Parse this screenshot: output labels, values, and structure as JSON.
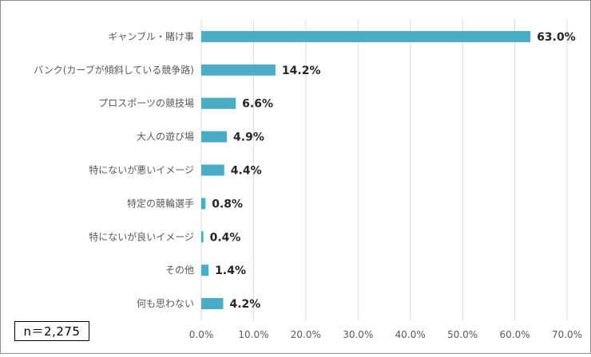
{
  "chart_data": {
    "type": "bar",
    "orientation": "horizontal",
    "categories": [
      "ギャンブル・賭け事",
      "バンク(カーブが傾斜している競争路)",
      "プロスポーツの競技場",
      "大人の遊び場",
      "特にないが悪いイメージ",
      "特定の競輪選手",
      "特にないが良いイメージ",
      "その他",
      "何も思わない"
    ],
    "values": [
      63.0,
      14.2,
      6.6,
      4.9,
      4.4,
      0.8,
      0.4,
      1.4,
      4.2
    ],
    "value_labels": [
      "63.0%",
      "14.2%",
      "6.6%",
      "4.9%",
      "4.4%",
      "0.8%",
      "0.4%",
      "1.4%",
      "4.2%"
    ],
    "xlim": [
      0,
      70
    ],
    "x_ticks": [
      0,
      10,
      20,
      30,
      40,
      50,
      60,
      70
    ],
    "x_tick_labels": [
      "0.0%",
      "10.0%",
      "20.0%",
      "30.0%",
      "40.0%",
      "50.0%",
      "60.0%",
      "70.0%"
    ],
    "grid": true,
    "bar_color": "#4bacc6",
    "annotation": "n＝2,275"
  }
}
